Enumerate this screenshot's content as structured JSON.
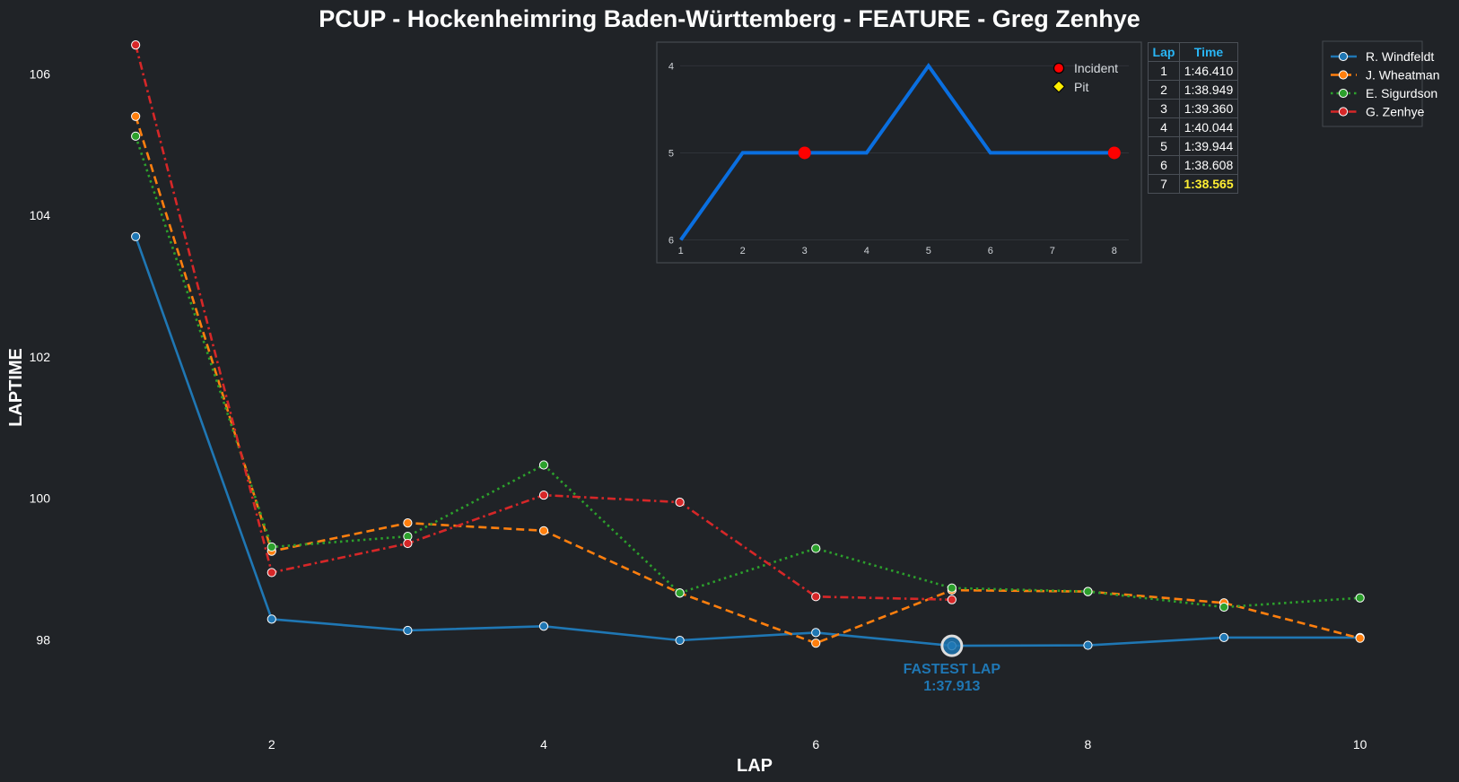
{
  "chart_data": [
    {
      "type": "line",
      "title": "PCUP - Hockenheimring Baden-Württemberg - FEATURE - Greg Zenhye",
      "xlabel": "LAP",
      "ylabel": "LAPTIME",
      "xlim": [
        0.9,
        10.2
      ],
      "ylim": [
        96.9,
        106.5
      ],
      "xticks": [
        2,
        4,
        6,
        8,
        10
      ],
      "yticks": [
        98,
        100,
        102,
        104,
        106
      ],
      "grid": false,
      "legend_position": "top-right",
      "series": [
        {
          "name": "R. Windfeldt",
          "color": "#1f77b4",
          "dash": "solid",
          "x": [
            1,
            2,
            3,
            4,
            5,
            6,
            7,
            8,
            9,
            10
          ],
          "y": [
            103.7,
            98.29,
            98.13,
            98.19,
            97.99,
            98.1,
            97.913,
            97.92,
            98.03,
            98.03
          ]
        },
        {
          "name": "J. Wheatman",
          "color": "#ff7f0e",
          "dash": "dashed",
          "x": [
            1,
            2,
            3,
            4,
            5,
            6,
            7,
            8,
            9,
            10
          ],
          "y": [
            105.4,
            99.25,
            99.65,
            99.54,
            98.66,
            97.95,
            98.7,
            98.68,
            98.52,
            98.02
          ]
        },
        {
          "name": "E. Sigurdson",
          "color": "#2ca02c",
          "dash": "dotted",
          "x": [
            1,
            2,
            3,
            4,
            5,
            6,
            7,
            8,
            9,
            10
          ],
          "y": [
            105.12,
            99.31,
            99.46,
            100.47,
            98.66,
            99.29,
            98.73,
            98.68,
            98.46,
            98.59
          ]
        },
        {
          "name": "G. Zenhye",
          "color": "#d62728",
          "dash": "dashdot",
          "x": [
            1,
            2,
            3,
            4,
            5,
            6,
            7
          ],
          "y": [
            106.41,
            98.949,
            99.36,
            100.044,
            99.944,
            98.608,
            98.565
          ]
        }
      ],
      "annotation": {
        "line1": "FASTEST LAP",
        "line2": "1:37.913",
        "x": 7,
        "y": 97.913,
        "color": "#1f77b4"
      }
    },
    {
      "type": "line",
      "title": "",
      "xlim": [
        0.7,
        8.35
      ],
      "ylim": [
        6.18,
        3.78
      ],
      "y_axis_inverted": true,
      "xticks": [
        1,
        2,
        3,
        4,
        5,
        6,
        7,
        8
      ],
      "yticks": [
        4,
        5,
        6
      ],
      "grid": true,
      "legend_position": "top-right",
      "series": [
        {
          "name": "position",
          "color": "#0a6fe0",
          "x": [
            1,
            2,
            3,
            4,
            5,
            6,
            7,
            8
          ],
          "y": [
            6,
            5,
            5,
            5,
            4,
            5,
            5,
            5
          ]
        }
      ],
      "markers": {
        "incident": {
          "label": "Incident",
          "color": "#ff0000",
          "x": [
            3,
            8
          ],
          "y": [
            5,
            5
          ]
        },
        "pit": {
          "label": "Pit",
          "color": "#ffee00",
          "x": [],
          "y": []
        }
      }
    }
  ],
  "lap_table": {
    "headers": [
      "Lap",
      "Time"
    ],
    "rows": [
      [
        "1",
        "1:46.410"
      ],
      [
        "2",
        "1:38.949"
      ],
      [
        "3",
        "1:39.360"
      ],
      [
        "4",
        "1:40.044"
      ],
      [
        "5",
        "1:39.944"
      ],
      [
        "6",
        "1:38.608"
      ],
      [
        "7",
        "1:38.565"
      ]
    ],
    "best_row": 6
  },
  "colors": {
    "background": "#202327",
    "inset_border": "#45494f",
    "table_header": "#29b6f6",
    "best_lap": "#ffee33"
  }
}
